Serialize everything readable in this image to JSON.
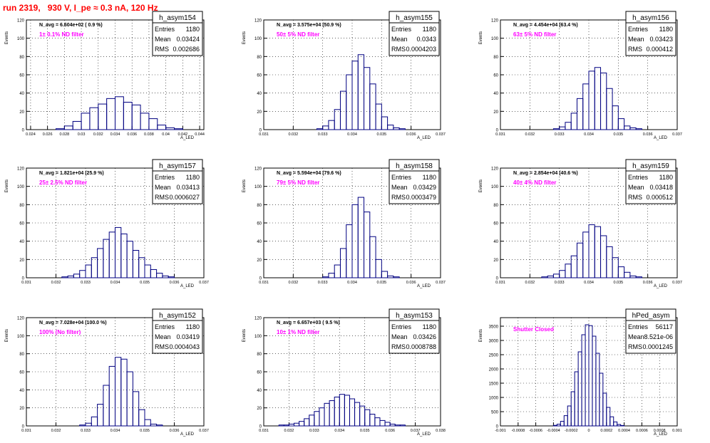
{
  "page_title": "run 2319,   930 V, I_pe ≈ 0.3 nA, 120 Hz",
  "colors": {
    "histogram": "#000080",
    "filter_label": "#ff00ff",
    "title": "#ff0000",
    "grid": "#000000"
  },
  "chart_data": [
    {
      "type": "histogram",
      "name": "h_asym154",
      "title": "h_asym154",
      "ylabel": "Events",
      "xlabel": "A_LED",
      "stats": {
        "Entries": "1180",
        "Mean": "0.03424",
        "RMS": "0.002686"
      },
      "navg": "N_avg = 6.604e+02 ( 0.9 %)",
      "filter": "1± 0.1% ND filter",
      "xlim": [
        0.0235,
        0.0445
      ],
      "ylim": [
        0,
        120
      ],
      "xticks": [
        "0.024",
        "0.026",
        "0.028",
        "0.03",
        "0.032",
        "0.034",
        "0.036",
        "0.038",
        "0.04",
        "0.042",
        "0.044"
      ],
      "yticks": [
        "0",
        "20",
        "40",
        "60",
        "80",
        "100",
        "120"
      ],
      "x": [
        0.0275,
        0.0285,
        0.0295,
        0.0305,
        0.0315,
        0.0325,
        0.0335,
        0.0345,
        0.0355,
        0.0365,
        0.0375,
        0.0385,
        0.0395,
        0.0405,
        0.0415
      ],
      "values": [
        1,
        4,
        9,
        18,
        24,
        28,
        34,
        36,
        30,
        27,
        18,
        12,
        5,
        2,
        1
      ]
    },
    {
      "type": "histogram",
      "name": "h_asym155",
      "title": "h_asym155",
      "ylabel": "Events",
      "xlabel": "A_LED",
      "stats": {
        "Entries": "1180",
        "Mean": "0.0343",
        "RMS": "0.0004203"
      },
      "navg": "N_avg = 3.575e+04 (50.9 %)",
      "filter": "50± 5% ND filter",
      "xlim": [
        0.031,
        0.037
      ],
      "ylim": [
        0,
        120
      ],
      "xticks": [
        "0.031",
        "0.032",
        "0.033",
        "0.034",
        "0.035",
        "0.036",
        "0.037"
      ],
      "yticks": [
        "0",
        "20",
        "40",
        "60",
        "80",
        "100",
        "120"
      ],
      "x": [
        0.0329,
        0.0331,
        0.0333,
        0.0335,
        0.0337,
        0.0339,
        0.0341,
        0.0343,
        0.0345,
        0.0347,
        0.0349,
        0.0351,
        0.0353,
        0.0355,
        0.0357
      ],
      "values": [
        1,
        4,
        10,
        22,
        42,
        60,
        75,
        82,
        68,
        50,
        28,
        14,
        5,
        2,
        1
      ]
    },
    {
      "type": "histogram",
      "name": "h_asym156",
      "title": "h_asym156",
      "ylabel": "Events",
      "xlabel": "A_LED",
      "stats": {
        "Entries": "1180",
        "Mean": "0.03423",
        "RMS": "0.000412"
      },
      "navg": "N_avg = 4.454e+04 (63.4 %)",
      "filter": "63± 5% ND filter",
      "xlim": [
        0.031,
        0.037
      ],
      "ylim": [
        0,
        120
      ],
      "xticks": [
        "0.031",
        "0.032",
        "0.033",
        "0.034",
        "0.035",
        "0.036",
        "0.037"
      ],
      "yticks": [
        "0",
        "20",
        "40",
        "60",
        "80",
        "100",
        "120"
      ],
      "x": [
        0.0329,
        0.0331,
        0.0333,
        0.0335,
        0.0337,
        0.0339,
        0.0341,
        0.0343,
        0.0345,
        0.0347,
        0.0349,
        0.0351,
        0.0353,
        0.0355,
        0.0357
      ],
      "values": [
        1,
        3,
        8,
        18,
        34,
        50,
        64,
        68,
        62,
        45,
        26,
        12,
        4,
        2,
        1
      ]
    },
    {
      "type": "histogram",
      "name": "h_asym157",
      "title": "h_asym157",
      "ylabel": "Events",
      "xlabel": "A_LED",
      "stats": {
        "Entries": "1180",
        "Mean": "0.03413",
        "RMS": "0.0006027"
      },
      "navg": "N_avg = 1.821e+04 (25.9 %)",
      "filter": "25± 2.5% ND filter",
      "xlim": [
        0.031,
        0.037
      ],
      "ylim": [
        0,
        120
      ],
      "xticks": [
        "0.031",
        "0.032",
        "0.033",
        "0.034",
        "0.035",
        "0.036",
        "0.037"
      ],
      "yticks": [
        "0",
        "20",
        "40",
        "60",
        "80",
        "100",
        "120"
      ],
      "x": [
        0.0323,
        0.0325,
        0.0327,
        0.0329,
        0.0331,
        0.0333,
        0.0335,
        0.0337,
        0.0339,
        0.0341,
        0.0343,
        0.0345,
        0.0347,
        0.0349,
        0.0351,
        0.0353,
        0.0355,
        0.0357,
        0.0359
      ],
      "values": [
        1,
        2,
        4,
        8,
        14,
        22,
        32,
        42,
        50,
        55,
        48,
        40,
        30,
        22,
        14,
        9,
        5,
        2,
        1
      ]
    },
    {
      "type": "histogram",
      "name": "h_asym158",
      "title": "h_asym158",
      "ylabel": "Events",
      "xlabel": "A_LED",
      "stats": {
        "Entries": "1180",
        "Mean": "0.03429",
        "RMS": "0.0003479"
      },
      "navg": "N_avg = 5.594e+04 (79.6 %)",
      "filter": "79± 5% ND filter",
      "xlim": [
        0.031,
        0.037
      ],
      "ylim": [
        0,
        120
      ],
      "xticks": [
        "0.031",
        "0.032",
        "0.033",
        "0.034",
        "0.035",
        "0.036",
        "0.037"
      ],
      "yticks": [
        "0",
        "20",
        "40",
        "60",
        "80",
        "100",
        "120"
      ],
      "x": [
        0.0331,
        0.0333,
        0.0335,
        0.0337,
        0.0339,
        0.0341,
        0.0343,
        0.0345,
        0.0347,
        0.0349,
        0.0351,
        0.0353,
        0.0355
      ],
      "values": [
        1,
        5,
        14,
        32,
        58,
        80,
        88,
        72,
        45,
        20,
        7,
        2,
        1
      ]
    },
    {
      "type": "histogram",
      "name": "h_asym159",
      "title": "h_asym159",
      "ylabel": "Events",
      "xlabel": "A_LED",
      "stats": {
        "Entries": "1180",
        "Mean": "0.03418",
        "RMS": "0.000512"
      },
      "navg": "N_avg = 2.854e+04 (40.6 %)",
      "filter": "40± 4% ND filter",
      "xlim": [
        0.031,
        0.037
      ],
      "ylim": [
        0,
        120
      ],
      "xticks": [
        "0.031",
        "0.032",
        "0.033",
        "0.034",
        "0.035",
        "0.036",
        "0.037"
      ],
      "yticks": [
        "0",
        "20",
        "40",
        "60",
        "80",
        "100",
        "120"
      ],
      "x": [
        0.0325,
        0.0327,
        0.0329,
        0.0331,
        0.0333,
        0.0335,
        0.0337,
        0.0339,
        0.0341,
        0.0343,
        0.0345,
        0.0347,
        0.0349,
        0.0351,
        0.0353,
        0.0355,
        0.0357
      ],
      "values": [
        1,
        2,
        4,
        8,
        15,
        24,
        38,
        50,
        58,
        56,
        46,
        34,
        22,
        12,
        6,
        2,
        1
      ]
    },
    {
      "type": "histogram",
      "name": "h_asym152",
      "title": "h_asym152",
      "ylabel": "Events",
      "xlabel": "A_LED",
      "stats": {
        "Entries": "1180",
        "Mean": "0.03419",
        "RMS": "0.0004043"
      },
      "navg": "N_avg = 7.028e+04 (100.0 %)",
      "filter": "100% (No filter)",
      "xlim": [
        0.031,
        0.037
      ],
      "ylim": [
        0,
        120
      ],
      "xticks": [
        "0.031",
        "0.032",
        "0.033",
        "0.034",
        "0.035",
        "0.036",
        "0.037"
      ],
      "yticks": [
        "0",
        "20",
        "40",
        "60",
        "80",
        "100",
        "120"
      ],
      "x": [
        0.0329,
        0.0331,
        0.0333,
        0.0335,
        0.0337,
        0.0339,
        0.0341,
        0.0343,
        0.0345,
        0.0347,
        0.0349,
        0.0351,
        0.0353,
        0.0355
      ],
      "values": [
        1,
        3,
        10,
        24,
        45,
        66,
        76,
        74,
        60,
        38,
        18,
        7,
        2,
        1
      ]
    },
    {
      "type": "histogram",
      "name": "h_asym153",
      "title": "h_asym153",
      "ylabel": "Events",
      "xlabel": "A_LED",
      "stats": {
        "Entries": "1180",
        "Mean": "0.03426",
        "RMS": "0.0008788"
      },
      "navg": "N_avg = 6.657e+03 ( 9.5 %)",
      "filter": "10± 1% ND filter",
      "xlim": [
        0.031,
        0.038
      ],
      "ylim": [
        0,
        120
      ],
      "xticks": [
        "0.031",
        "0.032",
        "0.033",
        "0.034",
        "0.035",
        "0.036",
        "0.037",
        "0.038"
      ],
      "yticks": [
        "0",
        "20",
        "40",
        "60",
        "80",
        "100",
        "120"
      ],
      "x": [
        0.0317,
        0.0319,
        0.0321,
        0.0323,
        0.0325,
        0.0327,
        0.0329,
        0.0331,
        0.0333,
        0.0335,
        0.0337,
        0.0339,
        0.0341,
        0.0343,
        0.0345,
        0.0347,
        0.0349,
        0.0351,
        0.0353,
        0.0355,
        0.0357,
        0.0359,
        0.0361,
        0.0363,
        0.0365
      ],
      "values": [
        1,
        1,
        2,
        3,
        5,
        8,
        12,
        16,
        20,
        25,
        28,
        32,
        35,
        34,
        30,
        26,
        22,
        18,
        13,
        9,
        6,
        4,
        2,
        1,
        1
      ]
    },
    {
      "type": "histogram",
      "name": "hPed_asym",
      "title": "hPed_asym",
      "ylabel": "Events",
      "xlabel": "A_LED",
      "stats": {
        "Entries": "56117",
        "Mean": "8.521e-06",
        "RMS": "0.0001245"
      },
      "navg": "",
      "filter": "Shutter Closed",
      "xlim": [
        -0.001,
        0.001
      ],
      "ylim": [
        0,
        3800
      ],
      "xticks": [
        "-0.001",
        "-0.0008",
        "-0.0006",
        "-0.0004",
        "-0.0002",
        "0",
        "0.0002",
        "0.0004",
        "0.0006",
        "0.0008",
        "0.001"
      ],
      "yticks": [
        "0",
        "500",
        "1000",
        "1500",
        "2000",
        "2500",
        "3000",
        "3500"
      ],
      "x": [
        -0.00038,
        -0.00034,
        -0.0003,
        -0.00026,
        -0.00022,
        -0.00018,
        -0.00014,
        -0.0001,
        -6e-05,
        -2e-05,
        2e-05,
        6e-05,
        0.0001,
        0.00014,
        0.00018,
        0.00022,
        0.00026,
        0.0003,
        0.00034,
        0.00038
      ],
      "values": [
        20,
        60,
        160,
        360,
        700,
        1200,
        1900,
        2600,
        3200,
        3550,
        3520,
        3150,
        2550,
        1850,
        1150,
        650,
        320,
        140,
        50,
        15
      ]
    }
  ]
}
